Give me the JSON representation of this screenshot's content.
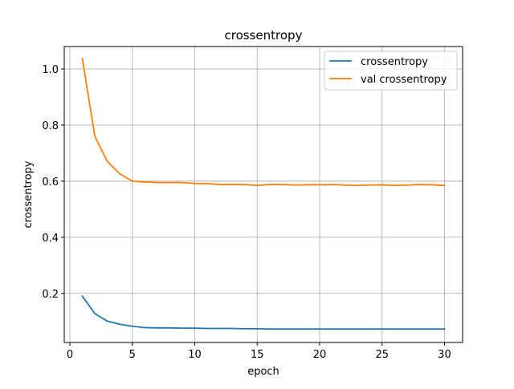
{
  "chart_data": {
    "type": "line",
    "title": "crossentropy",
    "xlabel": "epoch",
    "ylabel": "crossentropy",
    "xlim": [
      -0.45,
      31.45
    ],
    "ylim": [
      0.025,
      1.08
    ],
    "xticks": [
      0,
      5,
      10,
      15,
      20,
      25,
      30
    ],
    "yticks": [
      0.2,
      0.4,
      0.6,
      0.8,
      1.0
    ],
    "ytick_labels": [
      "0.2",
      "0.4",
      "0.6",
      "0.8",
      "1.0"
    ],
    "grid": true,
    "legend_position": "top-right",
    "x": [
      1,
      2,
      3,
      4,
      5,
      6,
      7,
      8,
      9,
      10,
      11,
      12,
      13,
      14,
      15,
      16,
      17,
      18,
      19,
      20,
      21,
      22,
      23,
      24,
      25,
      26,
      27,
      28,
      29,
      30
    ],
    "series": [
      {
        "name": "crossentropy",
        "color": "#1f77b4",
        "values": [
          0.19,
          0.128,
          0.101,
          0.09,
          0.083,
          0.078,
          0.077,
          0.077,
          0.076,
          0.076,
          0.075,
          0.075,
          0.075,
          0.074,
          0.074,
          0.073,
          0.073,
          0.073,
          0.073,
          0.073,
          0.073,
          0.073,
          0.073,
          0.073,
          0.073,
          0.073,
          0.073,
          0.073,
          0.073,
          0.073
        ]
      },
      {
        "name": "val crossentropy",
        "color": "#ff7f0e",
        "values": [
          1.037,
          0.76,
          0.67,
          0.626,
          0.6,
          0.597,
          0.595,
          0.595,
          0.595,
          0.592,
          0.591,
          0.588,
          0.588,
          0.588,
          0.585,
          0.588,
          0.588,
          0.586,
          0.587,
          0.587,
          0.588,
          0.586,
          0.585,
          0.586,
          0.587,
          0.585,
          0.586,
          0.588,
          0.587,
          0.585
        ]
      }
    ]
  }
}
